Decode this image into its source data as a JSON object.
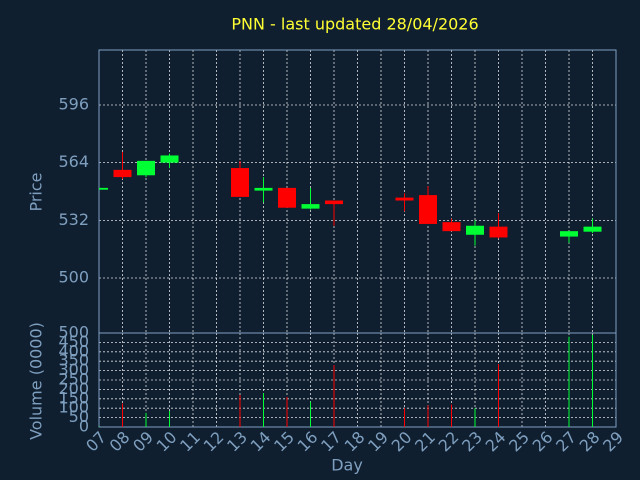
{
  "chart_data": {
    "type": "candlestick",
    "title": "PNN - last updated 28/04/2026",
    "ylabel": "Price",
    "volume_label": "Volume (0000)",
    "xlabel": "Day",
    "x": [
      7,
      8,
      9,
      10,
      13,
      14,
      15,
      16,
      17,
      20,
      21,
      22,
      23,
      24,
      27,
      28
    ],
    "open": [
      549,
      560,
      557,
      564,
      561,
      548.5,
      550,
      538.5,
      543,
      544.6,
      546,
      531,
      524,
      528.5,
      523,
      525.7
    ],
    "high": [
      550,
      570,
      565,
      569,
      565,
      556,
      550,
      550,
      543,
      547,
      551,
      533,
      532,
      536,
      526,
      533
    ],
    "low": [
      549,
      555,
      556,
      561,
      545,
      542,
      539,
      538,
      529,
      537,
      530,
      526,
      518,
      522,
      519.5,
      525
    ],
    "close": [
      550,
      556,
      565,
      568,
      545,
      550,
      539,
      541,
      541,
      543,
      530,
      526,
      529,
      522.5,
      526,
      528.5
    ],
    "volume": [
      5,
      125,
      75,
      85,
      170,
      180,
      160,
      135,
      330,
      100,
      115,
      120,
      100,
      335,
      480,
      490
    ],
    "up_color": "#00ff33",
    "down_color": "#ff0000",
    "xlim": [
      7,
      29
    ],
    "xticks": [
      {
        "value": 7,
        "label": "07"
      },
      {
        "value": 8,
        "label": "08"
      },
      {
        "value": 9,
        "label": "09"
      },
      10,
      11,
      12,
      13,
      14,
      15,
      16,
      17,
      18,
      19,
      20,
      21,
      22,
      23,
      24,
      25,
      26,
      27,
      28,
      29
    ],
    "ylim": [
      469.5,
      626.5
    ],
    "yticks": [
      500,
      532,
      564,
      596
    ],
    "volume_ylim": [
      0,
      500
    ],
    "volume_yticks": [
      0,
      50,
      100,
      150,
      200,
      250,
      300,
      350,
      400,
      450,
      500
    ],
    "grid": true
  }
}
